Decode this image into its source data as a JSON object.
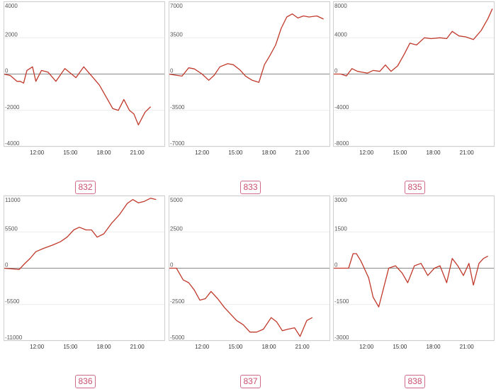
{
  "colors": {
    "series": "#c0392b",
    "badge": "#c94f70"
  },
  "chart_data": [
    {
      "type": "line",
      "label": "832",
      "ylim": [
        -4000,
        4000
      ],
      "yticks": [
        4000,
        2000,
        0,
        -2000,
        -4000
      ],
      "xlim": [
        9.0,
        23.5
      ],
      "xticks": [
        12,
        15,
        18,
        21
      ],
      "xtick_labels": [
        "12:00",
        "15:00",
        "18:00",
        "21:00"
      ],
      "grid": true,
      "x": [
        9.0,
        9.6,
        10.2,
        10.5,
        10.8,
        11.1,
        11.6,
        11.9,
        12.4,
        13.0,
        13.7,
        14.5,
        14.9,
        15.5,
        16.2,
        16.9,
        17.6,
        18.8,
        19.3,
        19.8,
        20.3,
        20.7,
        21.1,
        21.7,
        22.2
      ],
      "values": [
        0,
        -80,
        -400,
        -400,
        -500,
        200,
        400,
        -400,
        200,
        100,
        -400,
        300,
        100,
        -200,
        400,
        -100,
        -600,
        -1900,
        -2000,
        -1400,
        -2000,
        -2200,
        -2800,
        -2100,
        -1800
      ]
    },
    {
      "type": "line",
      "label": "833",
      "ylim": [
        -7000,
        7000
      ],
      "yticks": [
        7000,
        3500,
        0,
        -3500,
        -7000
      ],
      "xlim": [
        9.0,
        23.5
      ],
      "xticks": [
        12,
        15,
        18,
        21
      ],
      "xtick_labels": [
        "12:00",
        "15:00",
        "18:00",
        "21:00"
      ],
      "grid": true,
      "x": [
        9.0,
        9.6,
        10.2,
        10.8,
        11.3,
        12.0,
        12.6,
        13.1,
        13.6,
        14.3,
        14.8,
        15.4,
        15.9,
        16.5,
        17.1,
        17.6,
        18.1,
        18.6,
        19.1,
        19.6,
        20.1,
        20.6,
        21.1,
        21.6,
        22.3,
        22.9
      ],
      "values": [
        0,
        -100,
        -200,
        600,
        500,
        0,
        -600,
        -100,
        700,
        1000,
        900,
        400,
        -200,
        -600,
        -800,
        900,
        1800,
        2800,
        4400,
        5500,
        5800,
        5400,
        5600,
        5500,
        5600,
        5300
      ]
    },
    {
      "type": "line",
      "label": "835",
      "ylim": [
        -8000,
        8000
      ],
      "yticks": [
        8000,
        4000,
        0,
        -4000,
        -8000
      ],
      "xlim": [
        9.0,
        23.5
      ],
      "xticks": [
        12,
        15,
        18,
        21
      ],
      "xtick_labels": [
        "12:00",
        "15:00",
        "18:00",
        "21:00"
      ],
      "grid": true,
      "x": [
        9.0,
        9.7,
        10.2,
        10.7,
        11.2,
        11.6,
        12.1,
        12.6,
        13.2,
        13.7,
        14.2,
        14.8,
        15.4,
        15.9,
        16.5,
        17.2,
        17.8,
        18.6,
        19.2,
        19.7,
        20.3,
        20.9,
        21.6,
        22.3,
        22.9,
        23.3
      ],
      "values": [
        0,
        0,
        -200,
        600,
        300,
        200,
        100,
        400,
        300,
        1000,
        300,
        900,
        2200,
        3400,
        3200,
        4000,
        3900,
        4000,
        3900,
        4700,
        4200,
        4100,
        3800,
        4800,
        6100,
        7200
      ]
    },
    {
      "type": "line",
      "label": "836",
      "ylim": [
        -11000,
        11000
      ],
      "yticks": [
        11000,
        5500,
        0,
        -5500,
        -11000
      ],
      "xlim": [
        9.0,
        23.5
      ],
      "xticks": [
        12,
        15,
        18,
        21
      ],
      "xtick_labels": [
        "12:00",
        "15:00",
        "18:00",
        "21:00"
      ],
      "grid": true,
      "x": [
        9.0,
        9.7,
        10.4,
        10.9,
        11.4,
        11.9,
        12.6,
        13.4,
        14.1,
        14.7,
        15.3,
        15.8,
        16.4,
        16.9,
        17.4,
        18.0,
        18.7,
        19.4,
        20.1,
        20.6,
        21.1,
        21.6,
        22.2,
        22.7
      ],
      "values": [
        0,
        -100,
        -200,
        700,
        1500,
        2500,
        3000,
        3500,
        4000,
        4700,
        5800,
        6200,
        5800,
        5800,
        4700,
        5200,
        6800,
        8100,
        9800,
        10400,
        9900,
        10100,
        10600,
        10400
      ]
    },
    {
      "type": "line",
      "label": "837",
      "ylim": [
        -5000,
        5000
      ],
      "yticks": [
        5000,
        2500,
        0,
        -2500,
        -5000
      ],
      "xlim": [
        9.0,
        23.5
      ],
      "xticks": [
        12,
        15,
        18,
        21
      ],
      "xtick_labels": [
        "12:00",
        "15:00",
        "18:00",
        "21:00"
      ],
      "grid": true,
      "x": [
        9.0,
        9.7,
        10.3,
        10.8,
        11.3,
        11.8,
        12.3,
        12.8,
        13.4,
        14.0,
        14.6,
        15.1,
        15.7,
        16.3,
        16.9,
        17.5,
        18.2,
        18.7,
        19.2,
        19.7,
        20.3,
        20.8,
        21.4,
        21.9
      ],
      "values": [
        0,
        0,
        -800,
        -1000,
        -1500,
        -2200,
        -2100,
        -1600,
        -2100,
        -2700,
        -3200,
        -3600,
        -3900,
        -4400,
        -4400,
        -4200,
        -3400,
        -3700,
        -4300,
        -4200,
        -4100,
        -4700,
        -3600,
        -3400
      ]
    },
    {
      "type": "line",
      "label": "838",
      "ylim": [
        -3000,
        3000
      ],
      "yticks": [
        3000,
        1500,
        0,
        -1500,
        -3000
      ],
      "xlim": [
        9.0,
        23.5
      ],
      "xticks": [
        12,
        15,
        18,
        21
      ],
      "xtick_labels": [
        "12:00",
        "15:00",
        "18:00",
        "21:00"
      ],
      "grid": true,
      "x": [
        9.0,
        9.7,
        10.4,
        10.8,
        11.1,
        11.5,
        11.9,
        12.2,
        12.6,
        13.1,
        14.0,
        14.6,
        15.2,
        15.7,
        16.3,
        16.9,
        17.5,
        18.1,
        18.6,
        19.2,
        19.7,
        20.2,
        20.7,
        21.2,
        21.6,
        22.1,
        22.5,
        22.9
      ],
      "values": [
        0,
        0,
        0,
        600,
        600,
        300,
        -100,
        -400,
        -1200,
        -1600,
        0,
        100,
        -200,
        -600,
        100,
        200,
        -300,
        0,
        100,
        -600,
        400,
        100,
        -300,
        200,
        -700,
        200,
        400,
        500
      ]
    }
  ]
}
